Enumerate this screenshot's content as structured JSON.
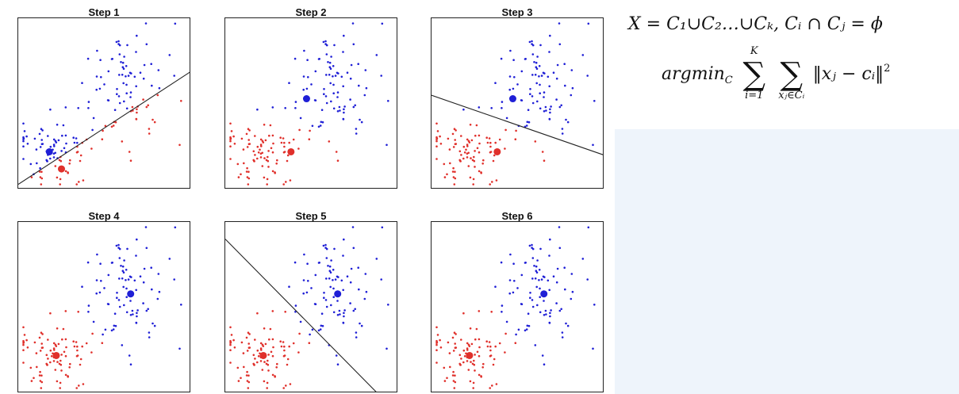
{
  "panels": [
    {
      "title": "Step 1",
      "line": "diag_up",
      "blue_center": [
        0.18,
        0.78
      ],
      "red_center": [
        0.25,
        0.88
      ]
    },
    {
      "title": "Step 2",
      "line": null,
      "blue_center": [
        0.47,
        0.47
      ],
      "red_center": [
        0.38,
        0.78
      ]
    },
    {
      "title": "Step 3",
      "line": "diag_down",
      "blue_center": [
        0.47,
        0.47
      ],
      "red_center": [
        0.38,
        0.78
      ]
    },
    {
      "title": "Step 4",
      "line": null,
      "blue_center": [
        0.65,
        0.42
      ],
      "red_center": [
        0.22,
        0.78
      ]
    },
    {
      "title": "Step 5",
      "line": "diag_steep",
      "blue_center": [
        0.65,
        0.42
      ],
      "red_center": [
        0.22,
        0.78
      ]
    },
    {
      "title": "Step 6",
      "line": null,
      "blue_center": [
        0.65,
        0.42
      ],
      "red_center": [
        0.22,
        0.78
      ]
    }
  ],
  "formula": {
    "line1": "X = C₁∪C₂…∪Cₖ,    Cᵢ ∩ Cⱼ = ϕ",
    "argmin": "argmin",
    "argmin_sub": "C",
    "sum1_top": "K",
    "sum1_bottom": "i=1",
    "sum2_bottom": "xⱼ∈Cᵢ",
    "norm": "‖xⱼ − cᵢ‖",
    "power": "2"
  },
  "colors": {
    "blue": "#1f1fd6",
    "red": "#e0302b",
    "line": "#222222",
    "panel_bg": "#eef4fb"
  },
  "description": "k-means clustering iterations with formula"
}
